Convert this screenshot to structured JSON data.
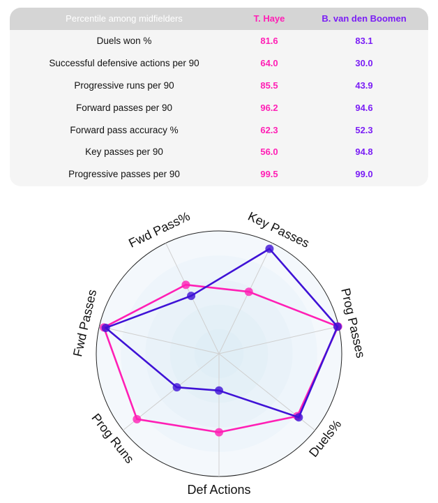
{
  "table": {
    "header": {
      "metric": "Percentile among midfielders",
      "player1": "T. Haye",
      "player2": "B. van den Boomen"
    },
    "rows": [
      {
        "metric": "Duels won %",
        "p1": "81.6",
        "p2": "83.1"
      },
      {
        "metric": "Successful defensive actions per 90",
        "p1": "64.0",
        "p2": "30.0"
      },
      {
        "metric": "Progressive runs per 90",
        "p1": "85.5",
        "p2": "43.9"
      },
      {
        "metric": "Forward passes per 90",
        "p1": "96.2",
        "p2": "94.6"
      },
      {
        "metric": "Forward pass accuracy %",
        "p1": "62.3",
        "p2": "52.3"
      },
      {
        "metric": "Key passes per 90",
        "p1": "56.0",
        "p2": "94.8"
      },
      {
        "metric": "Progressive passes per 90",
        "p1": "99.5",
        "p2": "99.0"
      }
    ]
  },
  "colors": {
    "player1": "#ff1fb5",
    "player2": "#3f12d6",
    "player2_text": "#7a1df5",
    "grid": "#cfcfcf"
  },
  "chart_data": {
    "type": "radar",
    "axes": [
      "Key Passes",
      "Prog Passes",
      "Duels%",
      "Def Actions",
      "Prog Runs",
      "Fwd Passes",
      "Fwd Pass%"
    ],
    "range": [
      0,
      100
    ],
    "series": [
      {
        "name": "T. Haye",
        "values": [
          56.0,
          99.5,
          81.6,
          64.0,
          85.5,
          96.2,
          62.3
        ]
      },
      {
        "name": "B. van den Boomen",
        "values": [
          94.8,
          99.0,
          83.1,
          30.0,
          43.9,
          94.6,
          52.3
        ]
      }
    ]
  }
}
